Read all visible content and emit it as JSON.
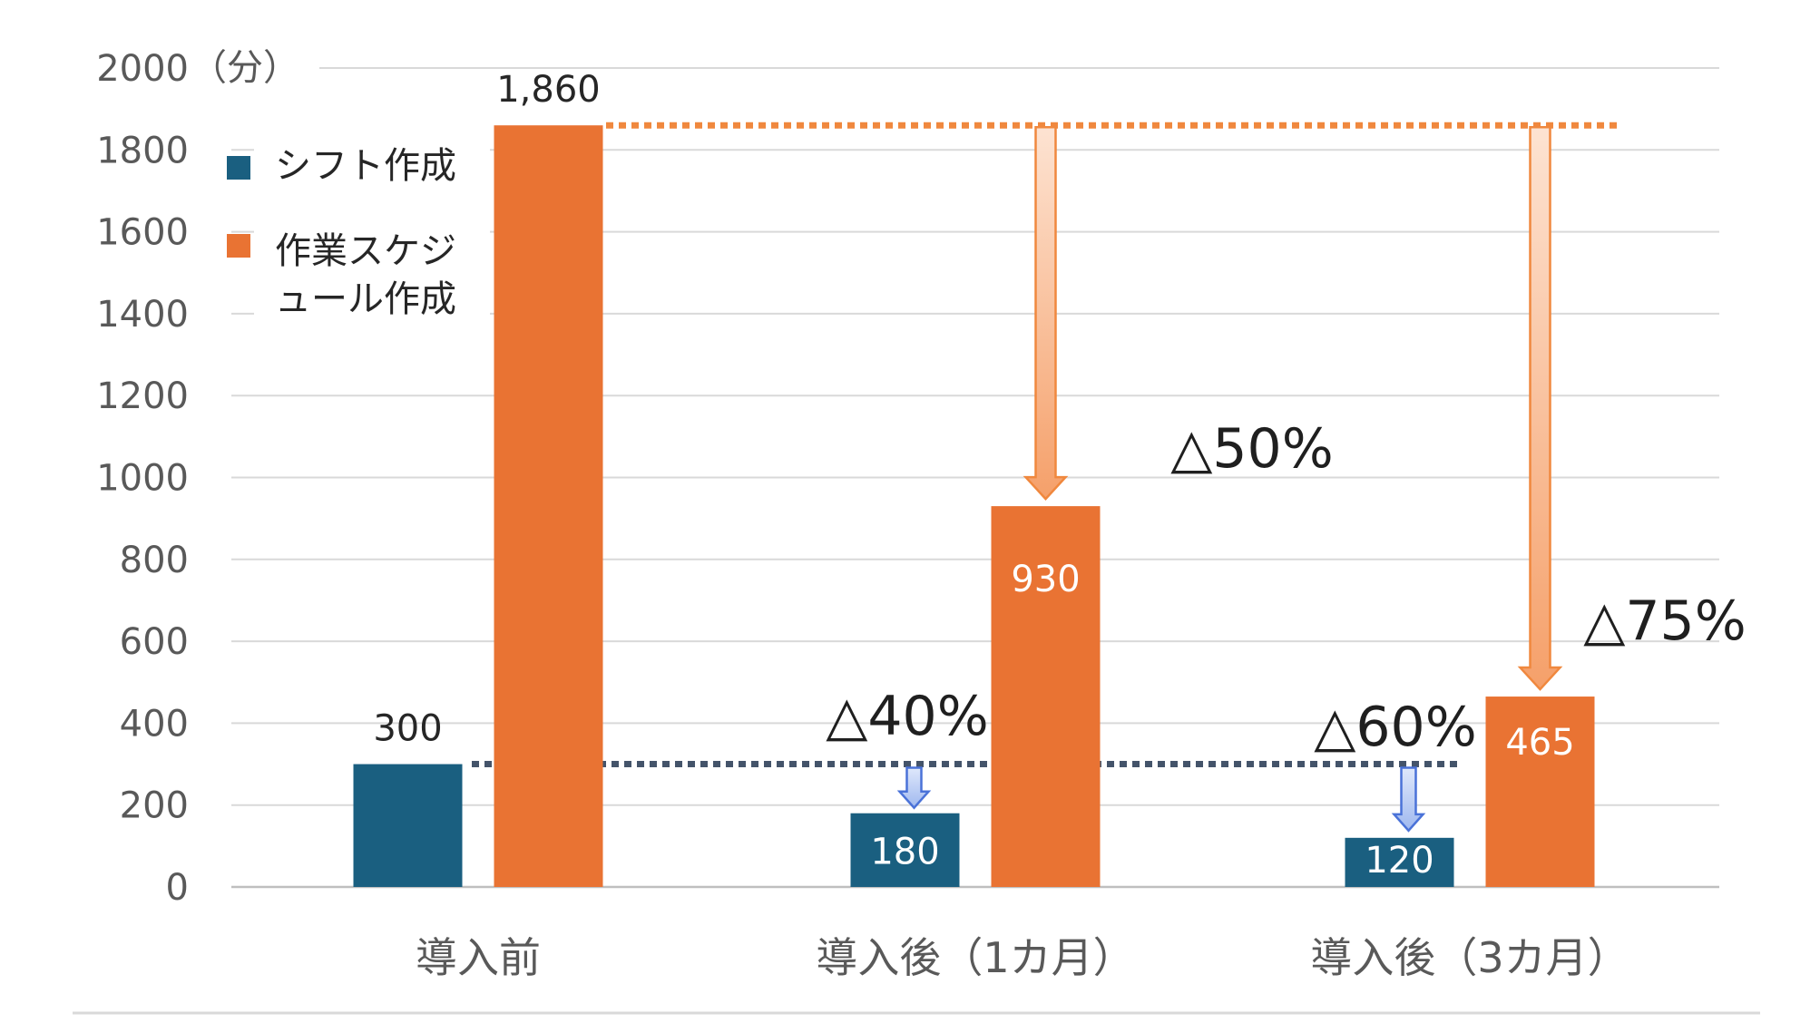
{
  "chart_data": {
    "type": "bar",
    "y_unit_label": "（分）",
    "categories": [
      "導入前",
      "導入後（1カ月）",
      "導入後（3カ月）"
    ],
    "ylim": [
      0,
      2000
    ],
    "yticks": [
      0,
      200,
      400,
      600,
      800,
      1000,
      1200,
      1400,
      1600,
      1800,
      2000
    ],
    "grid": true,
    "legend_position": "top-left",
    "series": [
      {
        "name": "シフト作成",
        "color": "#1a5f80",
        "values": [
          300,
          180,
          120
        ],
        "value_labels": [
          "300",
          "180",
          "120"
        ]
      },
      {
        "name": "作業スケジュール作成",
        "legend_lines": [
          "作業スケジ",
          "ュール作成"
        ],
        "color": "#e97333",
        "values": [
          1860,
          930,
          465
        ],
        "value_labels": [
          "1,860",
          "930",
          "465"
        ]
      }
    ],
    "reference_lines": [
      {
        "series": "シフト作成",
        "value": 300,
        "color": "#44546a"
      },
      {
        "series": "作業スケジュール作成",
        "value": 1860,
        "color": "#f0883e"
      }
    ],
    "annotations": [
      {
        "series": "シフト作成",
        "category": "導入後（1カ月）",
        "text": "△40%"
      },
      {
        "series": "シフト作成",
        "category": "導入後（3カ月）",
        "text": "△60%"
      },
      {
        "series": "作業スケジュール作成",
        "category": "導入後（1カ月）",
        "text": "△50%"
      },
      {
        "series": "作業スケジュール作成",
        "category": "導入後（3カ月）",
        "text": "△75%"
      }
    ]
  }
}
